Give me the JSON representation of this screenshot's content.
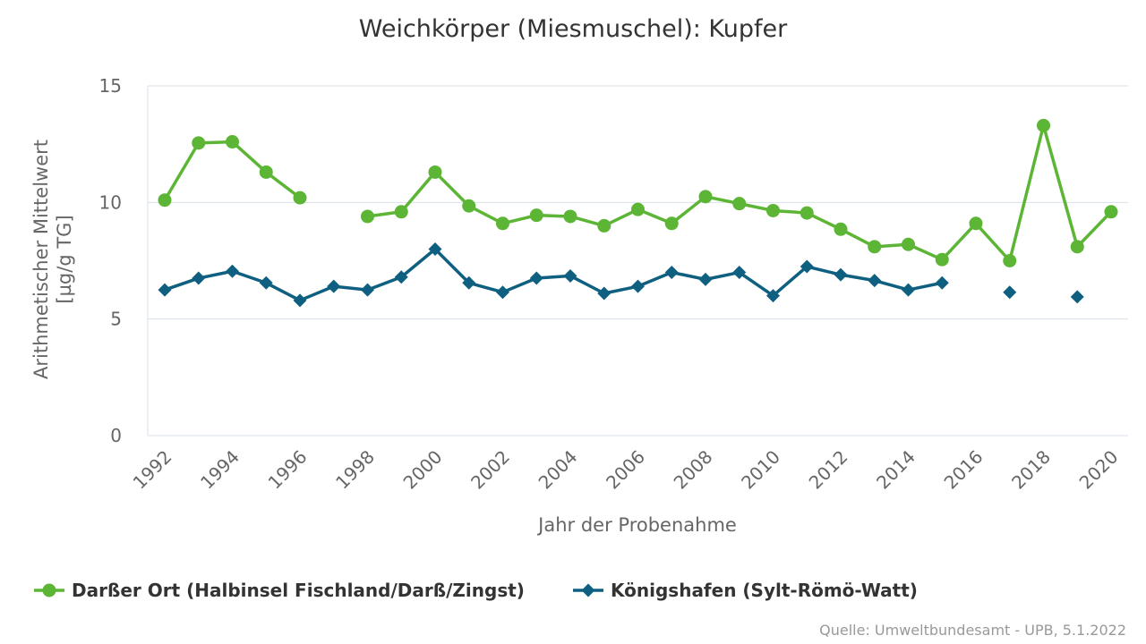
{
  "chart_data": {
    "type": "line",
    "title": "Weichkörper (Miesmuschel): Kupfer",
    "xlabel": "Jahr der Probenahme",
    "ylabel_line1": "Arithmetischer Mittelwert",
    "ylabel_line2": "[µg/g TG]",
    "ylim": [
      0,
      15
    ],
    "yticks": [
      "0",
      "5",
      "10",
      "15"
    ],
    "xlim": [
      1992,
      2020
    ],
    "xticks": [
      "1992",
      "1994",
      "1996",
      "1998",
      "2000",
      "2002",
      "2004",
      "2006",
      "2008",
      "2010",
      "2012",
      "2014",
      "2016",
      "2018",
      "2020"
    ],
    "grid": true,
    "legend_position": "bottom-left",
    "series": [
      {
        "name": "Darßer Ort (Halbinsel Fischland/Darß/Zingst)",
        "color": "#5db535",
        "marker": "circle",
        "points": [
          [
            1992,
            10.1
          ],
          [
            1993,
            12.55
          ],
          [
            1994,
            12.6
          ],
          [
            1995,
            11.3
          ],
          [
            1996,
            10.2
          ],
          [
            1997,
            null
          ],
          [
            1998,
            9.4
          ],
          [
            1999,
            9.6
          ],
          [
            2000,
            11.3
          ],
          [
            2001,
            9.85
          ],
          [
            2002,
            9.1
          ],
          [
            2003,
            9.45
          ],
          [
            2004,
            9.4
          ],
          [
            2005,
            9.0
          ],
          [
            2006,
            9.7
          ],
          [
            2007,
            9.1
          ],
          [
            2008,
            10.25
          ],
          [
            2009,
            9.95
          ],
          [
            2010,
            9.65
          ],
          [
            2011,
            9.55
          ],
          [
            2012,
            8.85
          ],
          [
            2013,
            8.1
          ],
          [
            2014,
            8.2
          ],
          [
            2015,
            7.55
          ],
          [
            2016,
            9.1
          ],
          [
            2017,
            7.5
          ],
          [
            2018,
            13.3
          ],
          [
            2019,
            8.1
          ],
          [
            2020,
            9.6
          ]
        ]
      },
      {
        "name": "Königshafen (Sylt-Römö-Watt)",
        "color": "#0e5f80",
        "marker": "diamond",
        "points": [
          [
            1992,
            6.25
          ],
          [
            1993,
            6.75
          ],
          [
            1994,
            7.05
          ],
          [
            1995,
            6.55
          ],
          [
            1996,
            5.8
          ],
          [
            1997,
            6.4
          ],
          [
            1998,
            6.25
          ],
          [
            1999,
            6.8
          ],
          [
            2000,
            8.0
          ],
          [
            2001,
            6.55
          ],
          [
            2002,
            6.15
          ],
          [
            2003,
            6.75
          ],
          [
            2004,
            6.85
          ],
          [
            2005,
            6.1
          ],
          [
            2006,
            6.4
          ],
          [
            2007,
            7.0
          ],
          [
            2008,
            6.7
          ],
          [
            2009,
            7.0
          ],
          [
            2010,
            6.0
          ],
          [
            2011,
            7.25
          ],
          [
            2012,
            6.9
          ],
          [
            2013,
            6.65
          ],
          [
            2014,
            6.25
          ],
          [
            2015,
            6.55
          ],
          [
            2016,
            null
          ],
          [
            2017,
            6.15
          ],
          [
            2018,
            null
          ],
          [
            2019,
            5.95
          ]
        ]
      }
    ]
  },
  "source": "Quelle: Umweltbundesamt - UPB, 5.1.2022"
}
